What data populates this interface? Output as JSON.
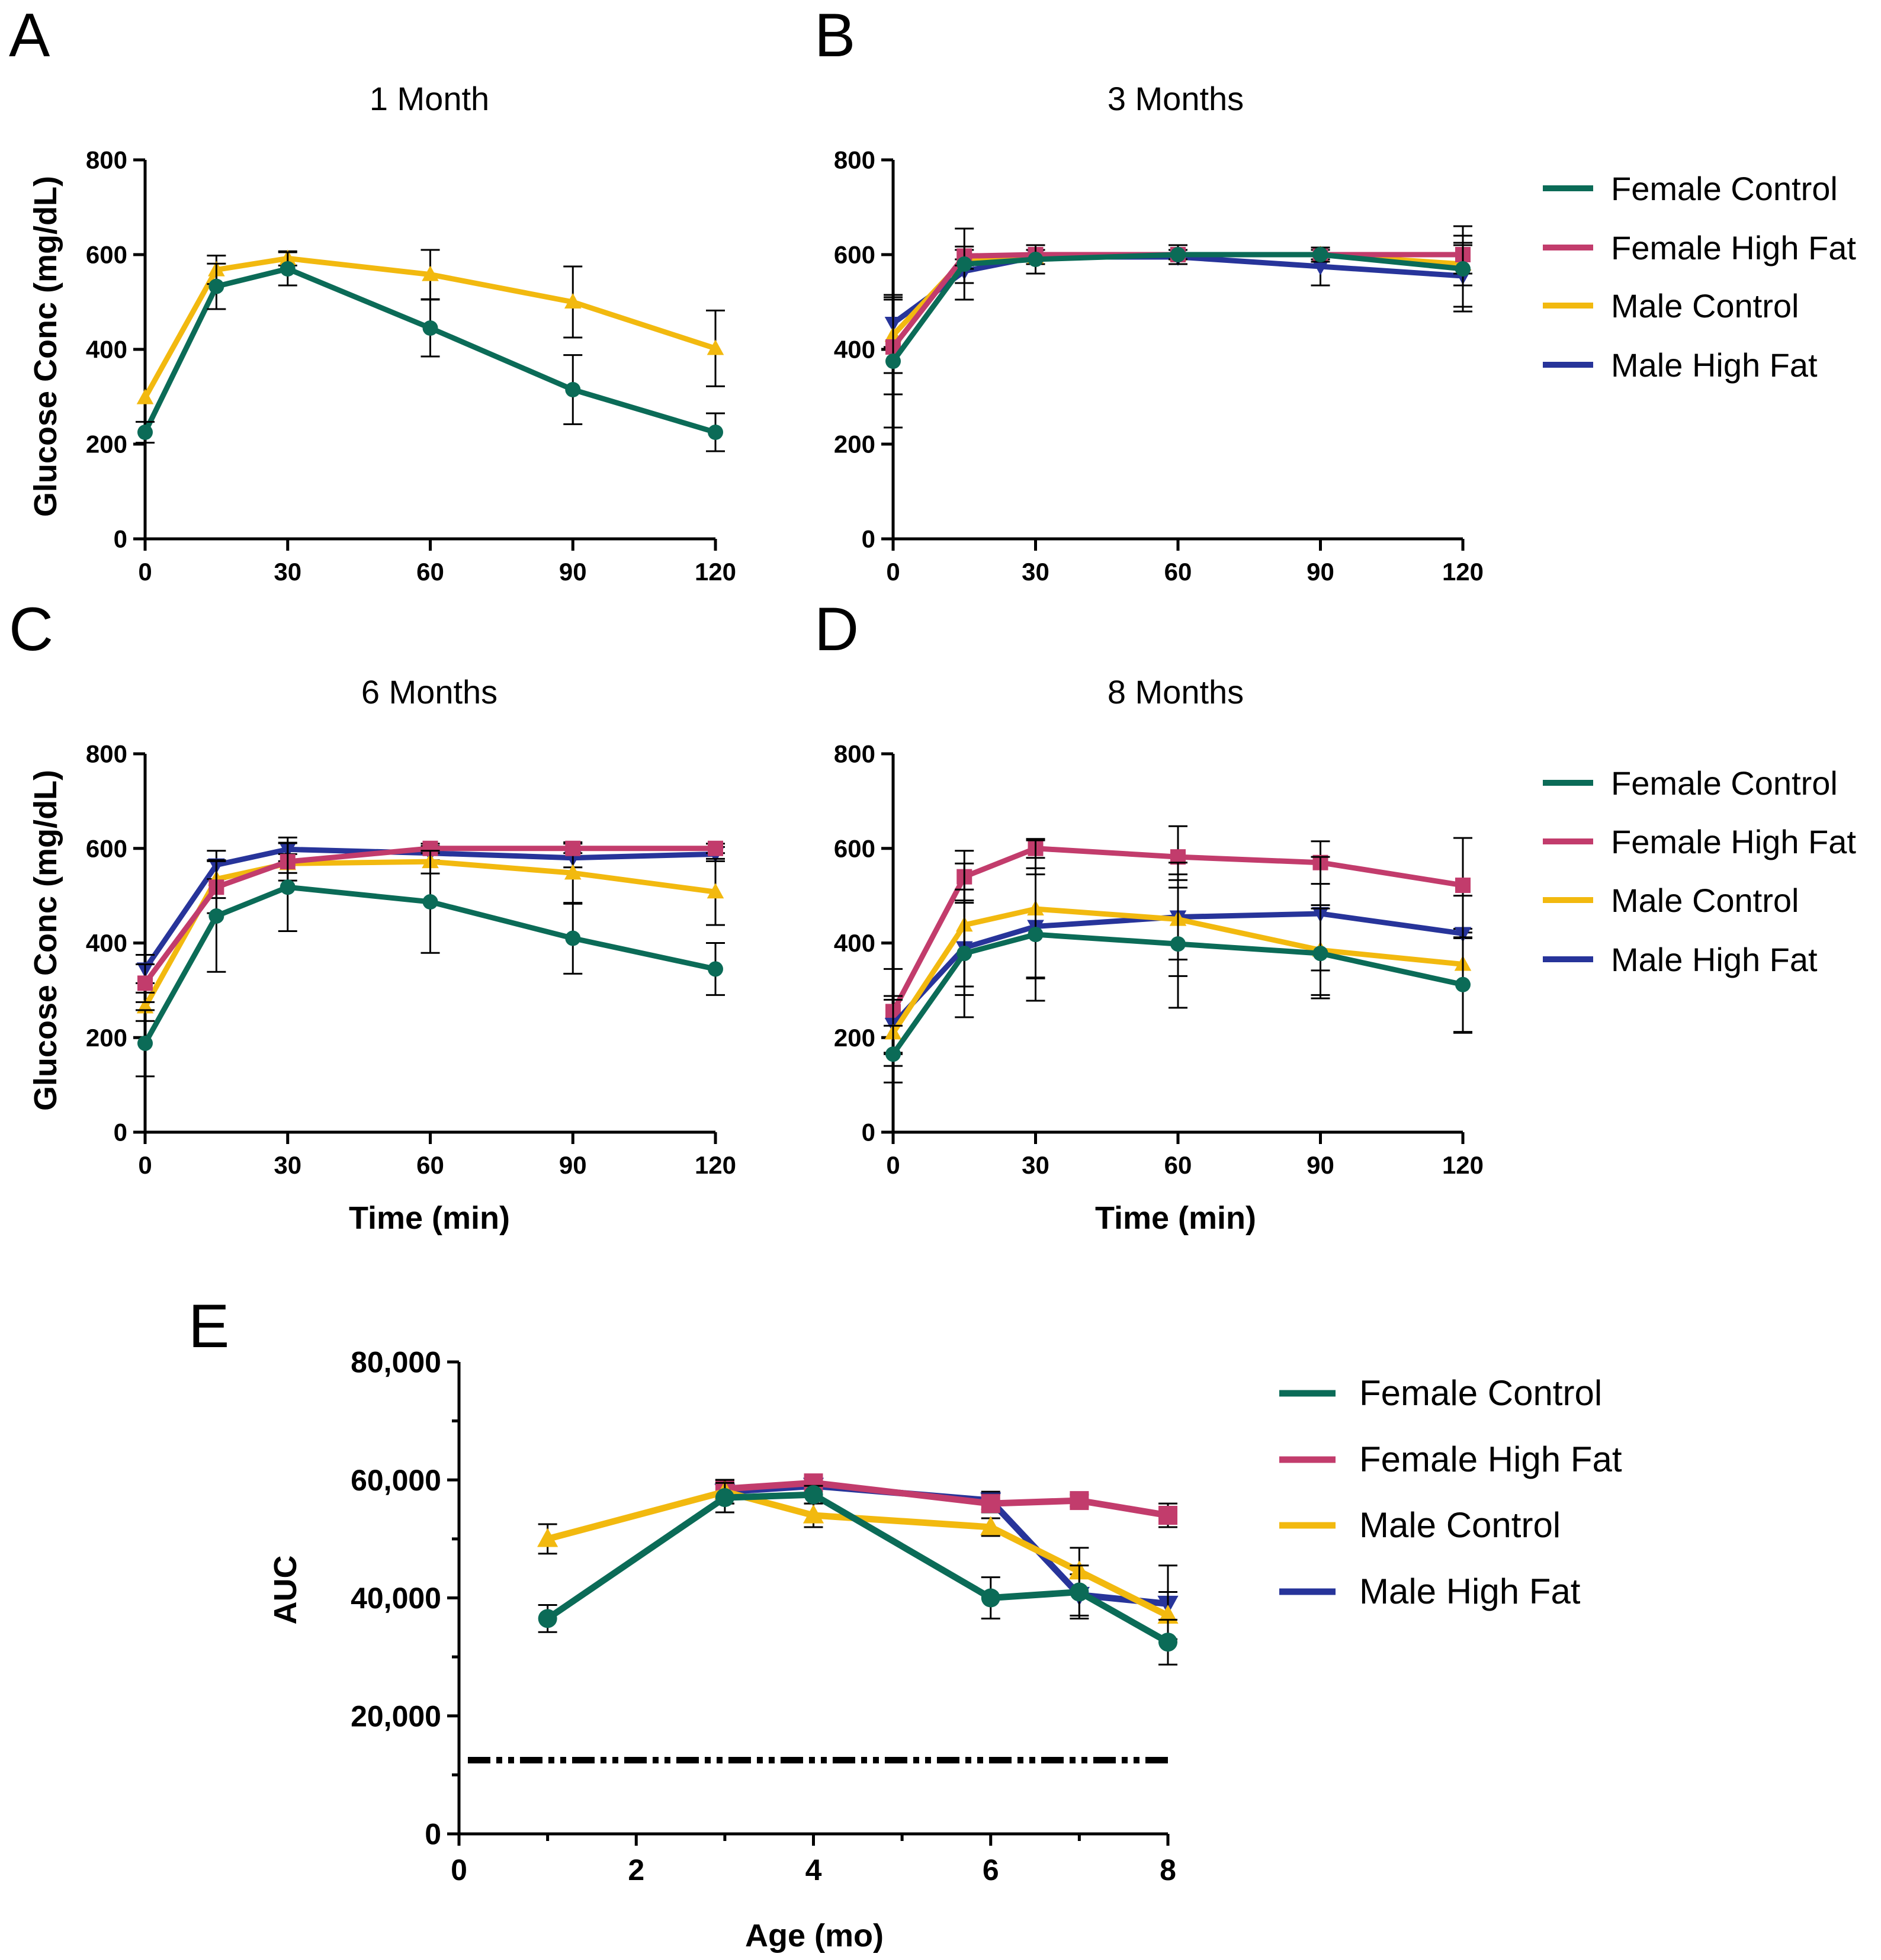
{
  "colors": {
    "Female Control": "#0b6b57",
    "Female High Fat": "#c23c6c",
    "Male Control": "#f2b90f",
    "Male High Fat": "#27349a",
    "axis": "#000000"
  },
  "chart_data": [
    {
      "id": "A",
      "letter": "A",
      "type": "line",
      "title": "1 Month",
      "xlabel": "",
      "ylabel": "Glucose Conc (mg/dL)",
      "xlim": [
        0,
        120
      ],
      "ylim": [
        0,
        800
      ],
      "xticks": [
        0,
        30,
        60,
        90,
        120
      ],
      "yticks": [
        0,
        200,
        400,
        600,
        800
      ],
      "x": [
        0,
        15,
        30,
        60,
        90,
        120
      ],
      "series": [
        {
          "name": "Male Control",
          "marker": "triangle",
          "values": [
            298,
            568,
            592,
            558,
            500,
            402
          ],
          "errors": [
            0,
            30,
            15,
            52,
            75,
            80
          ]
        },
        {
          "name": "Female Control",
          "marker": "circle",
          "values": [
            225,
            533,
            570,
            445,
            315,
            225
          ],
          "errors": [
            22,
            48,
            35,
            60,
            73,
            40
          ]
        }
      ]
    },
    {
      "id": "B",
      "letter": "B",
      "type": "line",
      "title": "3 Months",
      "xlabel": "",
      "ylabel": "",
      "xlim": [
        0,
        120
      ],
      "ylim": [
        0,
        800
      ],
      "xticks": [
        0,
        30,
        60,
        90,
        120
      ],
      "yticks": [
        0,
        200,
        400,
        600,
        800
      ],
      "x": [
        0,
        15,
        30,
        60,
        90,
        120
      ],
      "legend": [
        "Female Control",
        "Female High Fat",
        "Male Control",
        "Male High Fat"
      ],
      "series": [
        {
          "name": "Male High Fat",
          "marker": "invtriangle",
          "values": [
            455,
            565,
            595,
            595,
            575,
            555
          ],
          "errors": [
            50,
            25,
            15,
            15,
            40,
            65
          ]
        },
        {
          "name": "Male Control",
          "marker": "triangle",
          "values": [
            430,
            590,
            595,
            600,
            600,
            580
          ],
          "errors": [
            80,
            20,
            15,
            10,
            15,
            45
          ]
        },
        {
          "name": "Female High Fat",
          "marker": "square",
          "values": [
            405,
            597,
            600,
            600,
            600,
            600
          ],
          "errors": [
            100,
            20,
            10,
            10,
            10,
            40
          ]
        },
        {
          "name": "Female Control",
          "marker": "circle",
          "values": [
            375,
            580,
            590,
            600,
            600,
            570
          ],
          "errors": [
            140,
            75,
            30,
            20,
            15,
            90
          ]
        }
      ]
    },
    {
      "id": "C",
      "letter": "C",
      "type": "line",
      "title": "6 Months",
      "xlabel": "Time (min)",
      "ylabel": "Glucose Conc (mg/dL)",
      "xlim": [
        0,
        120
      ],
      "ylim": [
        0,
        800
      ],
      "xticks": [
        0,
        30,
        60,
        90,
        120
      ],
      "yticks": [
        0,
        200,
        400,
        600,
        800
      ],
      "x": [
        0,
        15,
        30,
        60,
        90,
        120
      ],
      "series": [
        {
          "name": "Male High Fat",
          "marker": "invtriangle",
          "values": [
            345,
            565,
            598,
            590,
            580,
            588
          ],
          "errors": [
            30,
            30,
            25,
            15,
            20,
            15
          ]
        },
        {
          "name": "Male Control",
          "marker": "triangle",
          "values": [
            265,
            535,
            568,
            572,
            548,
            508
          ],
          "errors": [
            30,
            40,
            20,
            25,
            65,
            70
          ]
        },
        {
          "name": "Female High Fat",
          "marker": "square",
          "values": [
            315,
            518,
            572,
            600,
            600,
            600
          ],
          "errors": [
            40,
            55,
            40,
            10,
            10,
            10
          ]
        },
        {
          "name": "Female Control",
          "marker": "circle",
          "values": [
            188,
            457,
            518,
            487,
            410,
            345
          ],
          "errors": [
            70,
            118,
            93,
            108,
            75,
            55
          ]
        }
      ]
    },
    {
      "id": "D",
      "letter": "D",
      "type": "line",
      "title": "8 Months",
      "xlabel": "Time (min)",
      "ylabel": "",
      "xlim": [
        0,
        120
      ],
      "ylim": [
        0,
        800
      ],
      "xticks": [
        0,
        30,
        60,
        90,
        120
      ],
      "yticks": [
        0,
        200,
        400,
        600,
        800
      ],
      "x": [
        0,
        15,
        30,
        60,
        90,
        120
      ],
      "legend": [
        "Female Control",
        "Female High Fat",
        "Male Control",
        "Male High Fat"
      ],
      "series": [
        {
          "name": "Female High Fat",
          "marker": "square",
          "values": [
            255,
            540,
            600,
            582,
            570,
            522
          ],
          "errors": [
            90,
            55,
            20,
            65,
            45,
            100
          ]
        },
        {
          "name": "Male High Fat",
          "marker": "invtriangle",
          "values": [
            228,
            390,
            435,
            455,
            462,
            420
          ],
          "errors": [
            60,
            100,
            110,
            90,
            120,
            10
          ]
        },
        {
          "name": "Male Control",
          "marker": "triangle",
          "values": [
            210,
            438,
            472,
            450,
            385,
            355
          ],
          "errors": [
            70,
            130,
            145,
            120,
            95,
            145
          ]
        },
        {
          "name": "Female Control",
          "marker": "circle",
          "values": [
            165,
            378,
            418,
            398,
            378,
            312
          ],
          "errors": [
            60,
            135,
            140,
            135,
            95,
            100
          ]
        }
      ]
    },
    {
      "id": "E",
      "letter": "E",
      "type": "line",
      "title": "",
      "xlabel": "Age (mo)",
      "ylabel": "AUC",
      "xlim": [
        0,
        8
      ],
      "ylim": [
        0,
        80000
      ],
      "xticks": [
        0,
        2,
        4,
        6,
        8
      ],
      "xminor": [
        1,
        3,
        5,
        7
      ],
      "yticks": [
        0,
        20000,
        40000,
        60000,
        80000
      ],
      "ytick_labels": [
        "0",
        "20,000",
        "40,000",
        "60,000",
        "80,000"
      ],
      "yminor": [
        10000,
        30000,
        50000,
        70000
      ],
      "x": [
        1,
        3,
        4,
        6,
        7,
        8
      ],
      "legend": [
        "Female Control",
        "Female High Fat",
        "Male Control",
        "Male High Fat"
      ],
      "reference_line": {
        "y": 12500,
        "x_range": [
          0.1,
          8
        ],
        "style": "dash-dot-dot"
      },
      "series": [
        {
          "name": "Male High Fat",
          "marker": "invtriangle",
          "x": [
            3,
            4,
            6,
            7,
            8
          ],
          "values": [
            58000,
            59000,
            56500,
            40500,
            39000
          ],
          "errors": [
            2000,
            1500,
            1500,
            3500,
            6500
          ]
        },
        {
          "name": "Female High Fat",
          "marker": "square",
          "x": [
            3,
            4,
            6,
            7,
            8
          ],
          "values": [
            58500,
            59500,
            56000,
            56500,
            54000
          ],
          "errors": [
            1500,
            1000,
            1500,
            1000,
            2000
          ]
        },
        {
          "name": "Male Control",
          "marker": "triangle",
          "x": [
            1,
            3,
            4,
            6,
            7,
            8
          ],
          "values": [
            50000,
            58000,
            54000,
            52000,
            44500,
            37000
          ],
          "errors": [
            2500,
            2000,
            2000,
            1500,
            4000,
            4000
          ]
        },
        {
          "name": "Female Control",
          "marker": "circle",
          "x": [
            1,
            3,
            4,
            6,
            7,
            8
          ],
          "values": [
            36500,
            57000,
            57500,
            40000,
            41000,
            32500
          ],
          "errors": [
            2300,
            2500,
            1500,
            3500,
            4500,
            3800
          ]
        }
      ]
    }
  ]
}
